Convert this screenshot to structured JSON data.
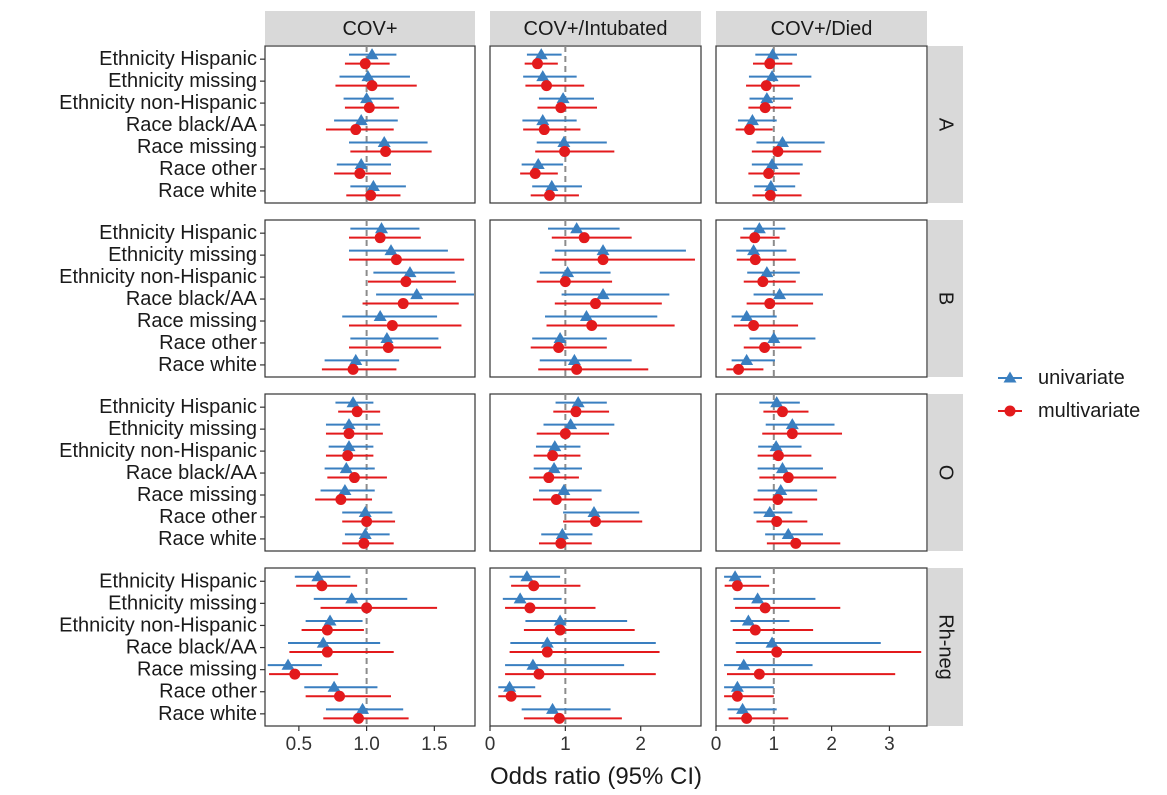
{
  "chart_data": {
    "type": "forest",
    "xlabel": "Odds ratio (95% CI)",
    "ylabel": "",
    "columns": [
      "COV+",
      "COV+/Intubated",
      "COV+/Died"
    ],
    "rows": [
      "A",
      "B",
      "O",
      "Rh-neg"
    ],
    "categories": [
      "Ethnicity Hispanic",
      "Ethnicity missing",
      "Ethnicity non-Hispanic",
      "Race black/AA",
      "Race missing",
      "Race other",
      "Race white"
    ],
    "reference_line": 1,
    "axes": [
      {
        "column": "COV+",
        "xlim": [
          0.25,
          1.8
        ],
        "ticks": [
          0.5,
          1.0,
          1.5
        ],
        "tick_labels": [
          "0.5",
          "1.0",
          "1.5"
        ]
      },
      {
        "column": "COV+/Intubated",
        "xlim": [
          0,
          2.8
        ],
        "ticks": [
          0,
          1,
          2
        ],
        "tick_labels": [
          "0",
          "1",
          "2"
        ]
      },
      {
        "column": "COV+/Died",
        "xlim": [
          0,
          3.65
        ],
        "ticks": [
          0,
          1,
          2,
          3
        ],
        "tick_labels": [
          "0",
          "1",
          "2",
          "3"
        ]
      }
    ],
    "legend": {
      "position": "right",
      "entries": [
        {
          "label": "univariate",
          "color": "#3a7fc0",
          "shape": "triangle"
        },
        {
          "label": "multivariate",
          "color": "#e31a1c",
          "shape": "circle"
        }
      ]
    },
    "series": [
      {
        "name": "univariate",
        "color": "#3a7fc0",
        "panels": {
          "A": {
            "COV+": [
              [
                1.04,
                0.87,
                1.22
              ],
              [
                1.01,
                0.8,
                1.32
              ],
              [
                1.0,
                0.83,
                1.2
              ],
              [
                0.96,
                0.76,
                1.23
              ],
              [
                1.13,
                0.87,
                1.45
              ],
              [
                0.96,
                0.78,
                1.18
              ],
              [
                1.05,
                0.88,
                1.29
              ]
            ],
            "COV+/Intubated": [
              [
                0.68,
                0.49,
                0.95
              ],
              [
                0.7,
                0.44,
                1.15
              ],
              [
                0.97,
                0.65,
                1.38
              ],
              [
                0.7,
                0.43,
                1.15
              ],
              [
                0.98,
                0.62,
                1.55
              ],
              [
                0.64,
                0.42,
                0.97
              ],
              [
                0.82,
                0.56,
                1.22
              ]
            ],
            "COV+/Died": [
              [
                0.98,
                0.68,
                1.4
              ],
              [
                0.97,
                0.57,
                1.65
              ],
              [
                0.88,
                0.58,
                1.33
              ],
              [
                0.63,
                0.38,
                1.05
              ],
              [
                1.15,
                0.7,
                1.88
              ],
              [
                0.97,
                0.62,
                1.5
              ],
              [
                0.95,
                0.66,
                1.37
              ]
            ]
          },
          "B": {
            "COV+": [
              [
                1.11,
                0.88,
                1.39
              ],
              [
                1.18,
                0.87,
                1.6
              ],
              [
                1.32,
                1.05,
                1.65
              ],
              [
                1.37,
                1.07,
                1.8
              ],
              [
                1.1,
                0.82,
                1.52
              ],
              [
                1.15,
                0.88,
                1.53
              ],
              [
                0.92,
                0.69,
                1.24
              ]
            ],
            "COV+/Intubated": [
              [
                1.15,
                0.77,
                1.72
              ],
              [
                1.5,
                0.86,
                2.6
              ],
              [
                1.03,
                0.66,
                1.6
              ],
              [
                1.5,
                0.95,
                2.38
              ],
              [
                1.28,
                0.73,
                2.22
              ],
              [
                0.93,
                0.56,
                1.55
              ],
              [
                1.12,
                0.66,
                1.88
              ]
            ],
            "COV+/Died": [
              [
                0.75,
                0.47,
                1.2
              ],
              [
                0.65,
                0.35,
                1.22
              ],
              [
                0.88,
                0.54,
                1.45
              ],
              [
                1.1,
                0.65,
                1.85
              ],
              [
                0.53,
                0.27,
                1.05
              ],
              [
                1.0,
                0.58,
                1.72
              ],
              [
                0.53,
                0.27,
                1.02
              ]
            ]
          },
          "O": {
            "COV+": [
              [
                0.9,
                0.77,
                1.05
              ],
              [
                0.87,
                0.7,
                1.1
              ],
              [
                0.87,
                0.72,
                1.05
              ],
              [
                0.85,
                0.69,
                1.06
              ],
              [
                0.84,
                0.66,
                1.06
              ],
              [
                0.99,
                0.82,
                1.19
              ],
              [
                0.99,
                0.84,
                1.17
              ]
            ],
            "COV+/Intubated": [
              [
                1.17,
                0.87,
                1.55
              ],
              [
                1.07,
                0.71,
                1.65
              ],
              [
                0.86,
                0.61,
                1.2
              ],
              [
                0.85,
                0.58,
                1.22
              ],
              [
                0.98,
                0.65,
                1.48
              ],
              [
                1.38,
                0.97,
                1.98
              ],
              [
                0.96,
                0.68,
                1.36
              ]
            ],
            "COV+/Died": [
              [
                1.05,
                0.75,
                1.45
              ],
              [
                1.32,
                0.86,
                2.05
              ],
              [
                1.04,
                0.73,
                1.48
              ],
              [
                1.15,
                0.72,
                1.85
              ],
              [
                1.12,
                0.72,
                1.75
              ],
              [
                0.93,
                0.65,
                1.32
              ],
              [
                1.25,
                0.85,
                1.85
              ]
            ]
          },
          "Rh-neg": {
            "COV+": [
              [
                0.64,
                0.47,
                0.88
              ],
              [
                0.89,
                0.61,
                1.3
              ],
              [
                0.73,
                0.55,
                0.97
              ],
              [
                0.68,
                0.42,
                1.1
              ],
              [
                0.42,
                0.27,
                0.67
              ],
              [
                0.76,
                0.54,
                1.08
              ],
              [
                0.97,
                0.7,
                1.27
              ]
            ],
            "COV+/Intubated": [
              [
                0.49,
                0.26,
                0.93
              ],
              [
                0.4,
                0.17,
                0.95
              ],
              [
                0.93,
                0.47,
                1.82
              ],
              [
                0.76,
                0.27,
                2.2
              ],
              [
                0.57,
                0.2,
                1.78
              ],
              [
                0.26,
                0.11,
                0.6
              ],
              [
                0.83,
                0.42,
                1.6
              ]
            ],
            "COV+/Died": [
              [
                0.33,
                0.14,
                0.78
              ],
              [
                0.72,
                0.3,
                1.72
              ],
              [
                0.56,
                0.25,
                1.27
              ],
              [
                0.97,
                0.34,
                2.85
              ],
              [
                0.48,
                0.14,
                1.67
              ],
              [
                0.37,
                0.14,
                1.0
              ],
              [
                0.46,
                0.2,
                1.05
              ]
            ]
          }
        }
      },
      {
        "name": "multivariate",
        "color": "#e31a1c",
        "panels": {
          "A": {
            "COV+": [
              [
                0.99,
                0.84,
                1.17
              ],
              [
                1.04,
                0.77,
                1.37
              ],
              [
                1.02,
                0.84,
                1.24
              ],
              [
                0.92,
                0.7,
                1.2
              ],
              [
                1.14,
                0.88,
                1.48
              ],
              [
                0.95,
                0.76,
                1.18
              ],
              [
                1.03,
                0.85,
                1.25
              ]
            ],
            "COV+/Intubated": [
              [
                0.63,
                0.46,
                0.9
              ],
              [
                0.75,
                0.47,
                1.25
              ],
              [
                0.94,
                0.63,
                1.42
              ],
              [
                0.72,
                0.44,
                1.2
              ],
              [
                0.99,
                0.6,
                1.65
              ],
              [
                0.6,
                0.4,
                0.9
              ],
              [
                0.79,
                0.54,
                1.18
              ]
            ],
            "COV+/Died": [
              [
                0.93,
                0.64,
                1.32
              ],
              [
                0.87,
                0.52,
                1.45
              ],
              [
                0.85,
                0.56,
                1.3
              ],
              [
                0.58,
                0.34,
                0.98
              ],
              [
                1.07,
                0.62,
                1.82
              ],
              [
                0.91,
                0.56,
                1.45
              ],
              [
                0.94,
                0.63,
                1.48
              ]
            ]
          },
          "B": {
            "COV+": [
              [
                1.1,
                0.87,
                1.4
              ],
              [
                1.22,
                0.87,
                1.72
              ],
              [
                1.29,
                1.01,
                1.66
              ],
              [
                1.27,
                0.97,
                1.68
              ],
              [
                1.19,
                0.87,
                1.7
              ],
              [
                1.16,
                0.87,
                1.55
              ],
              [
                0.9,
                0.67,
                1.22
              ]
            ],
            "COV+/Intubated": [
              [
                1.25,
                0.82,
                1.88
              ],
              [
                1.5,
                0.82,
                2.72
              ],
              [
                1.0,
                0.62,
                1.62
              ],
              [
                1.4,
                0.86,
                2.28
              ],
              [
                1.35,
                0.75,
                2.45
              ],
              [
                0.91,
                0.54,
                1.55
              ],
              [
                1.15,
                0.64,
                2.1
              ]
            ],
            "COV+/Died": [
              [
                0.67,
                0.42,
                1.1
              ],
              [
                0.68,
                0.36,
                1.38
              ],
              [
                0.81,
                0.48,
                1.38
              ],
              [
                0.93,
                0.53,
                1.68
              ],
              [
                0.65,
                0.31,
                1.42
              ],
              [
                0.84,
                0.48,
                1.48
              ],
              [
                0.39,
                0.18,
                0.82
              ]
            ]
          },
          "O": {
            "COV+": [
              [
                0.93,
                0.79,
                1.1
              ],
              [
                0.87,
                0.7,
                1.12
              ],
              [
                0.86,
                0.7,
                1.05
              ],
              [
                0.91,
                0.71,
                1.15
              ],
              [
                0.81,
                0.62,
                1.04
              ],
              [
                1.0,
                0.82,
                1.21
              ],
              [
                0.98,
                0.82,
                1.2
              ]
            ],
            "COV+/Intubated": [
              [
                1.14,
                0.84,
                1.58
              ],
              [
                1.0,
                0.62,
                1.58
              ],
              [
                0.83,
                0.58,
                1.2
              ],
              [
                0.78,
                0.52,
                1.18
              ],
              [
                0.88,
                0.57,
                1.35
              ],
              [
                1.4,
                0.97,
                2.02
              ],
              [
                0.94,
                0.65,
                1.35
              ]
            ],
            "COV+/Died": [
              [
                1.15,
                0.82,
                1.6
              ],
              [
                1.32,
                0.8,
                2.18
              ],
              [
                1.08,
                0.72,
                1.65
              ],
              [
                1.25,
                0.75,
                2.08
              ],
              [
                1.07,
                0.65,
                1.75
              ],
              [
                1.05,
                0.7,
                1.58
              ],
              [
                1.38,
                0.88,
                2.15
              ]
            ]
          },
          "Rh-neg": {
            "COV+": [
              [
                0.67,
                0.48,
                0.93
              ],
              [
                1.0,
                0.66,
                1.52
              ],
              [
                0.71,
                0.52,
                0.98
              ],
              [
                0.71,
                0.43,
                1.2
              ],
              [
                0.47,
                0.28,
                0.79
              ],
              [
                0.8,
                0.55,
                1.18
              ],
              [
                0.94,
                0.68,
                1.31
              ]
            ],
            "COV+/Intubated": [
              [
                0.58,
                0.28,
                1.2
              ],
              [
                0.53,
                0.2,
                1.4
              ],
              [
                0.93,
                0.45,
                1.92
              ],
              [
                0.76,
                0.26,
                2.25
              ],
              [
                0.65,
                0.2,
                2.2
              ],
              [
                0.28,
                0.11,
                0.68
              ],
              [
                0.92,
                0.45,
                1.75
              ]
            ],
            "COV+/Died": [
              [
                0.37,
                0.15,
                0.92
              ],
              [
                0.85,
                0.33,
                2.15
              ],
              [
                0.68,
                0.29,
                1.68
              ],
              [
                1.05,
                0.35,
                3.55
              ],
              [
                0.75,
                0.19,
                3.1
              ],
              [
                0.37,
                0.14,
                1.0
              ],
              [
                0.53,
                0.22,
                1.25
              ]
            ]
          }
        }
      }
    ]
  }
}
